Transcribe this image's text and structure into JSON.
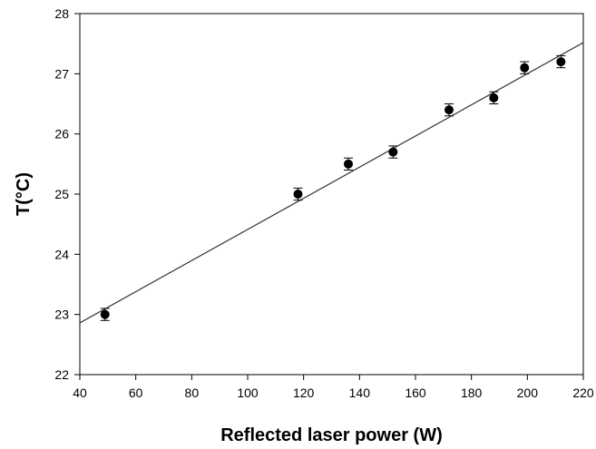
{
  "chart_data": {
    "type": "scatter",
    "title": "",
    "xlabel": "Reflected laser power (W)",
    "ylabel": "T(°C)",
    "xlim": [
      40,
      220
    ],
    "ylim": [
      22,
      28
    ],
    "x_ticks": [
      40,
      60,
      80,
      100,
      120,
      140,
      160,
      180,
      200,
      220
    ],
    "y_ticks": [
      22,
      23,
      24,
      25,
      26,
      27,
      28
    ],
    "grid": false,
    "legend": "none",
    "series": [
      {
        "marker": "filled-circle",
        "color": "#000000",
        "points": [
          {
            "x": 49,
            "y": 23.0,
            "err": 0.1
          },
          {
            "x": 118,
            "y": 25.0,
            "err": 0.1
          },
          {
            "x": 136,
            "y": 25.5,
            "err": 0.1
          },
          {
            "x": 152,
            "y": 25.7,
            "err": 0.1
          },
          {
            "x": 172,
            "y": 26.4,
            "err": 0.1
          },
          {
            "x": 188,
            "y": 26.6,
            "err": 0.1
          },
          {
            "x": 199,
            "y": 27.1,
            "err": 0.1
          },
          {
            "x": 212,
            "y": 27.2,
            "err": 0.1
          }
        ]
      }
    ],
    "fit_line": {
      "style": "linear",
      "color": "#333333",
      "x": [
        40,
        222
      ],
      "y": [
        22.86,
        27.57
      ]
    }
  }
}
